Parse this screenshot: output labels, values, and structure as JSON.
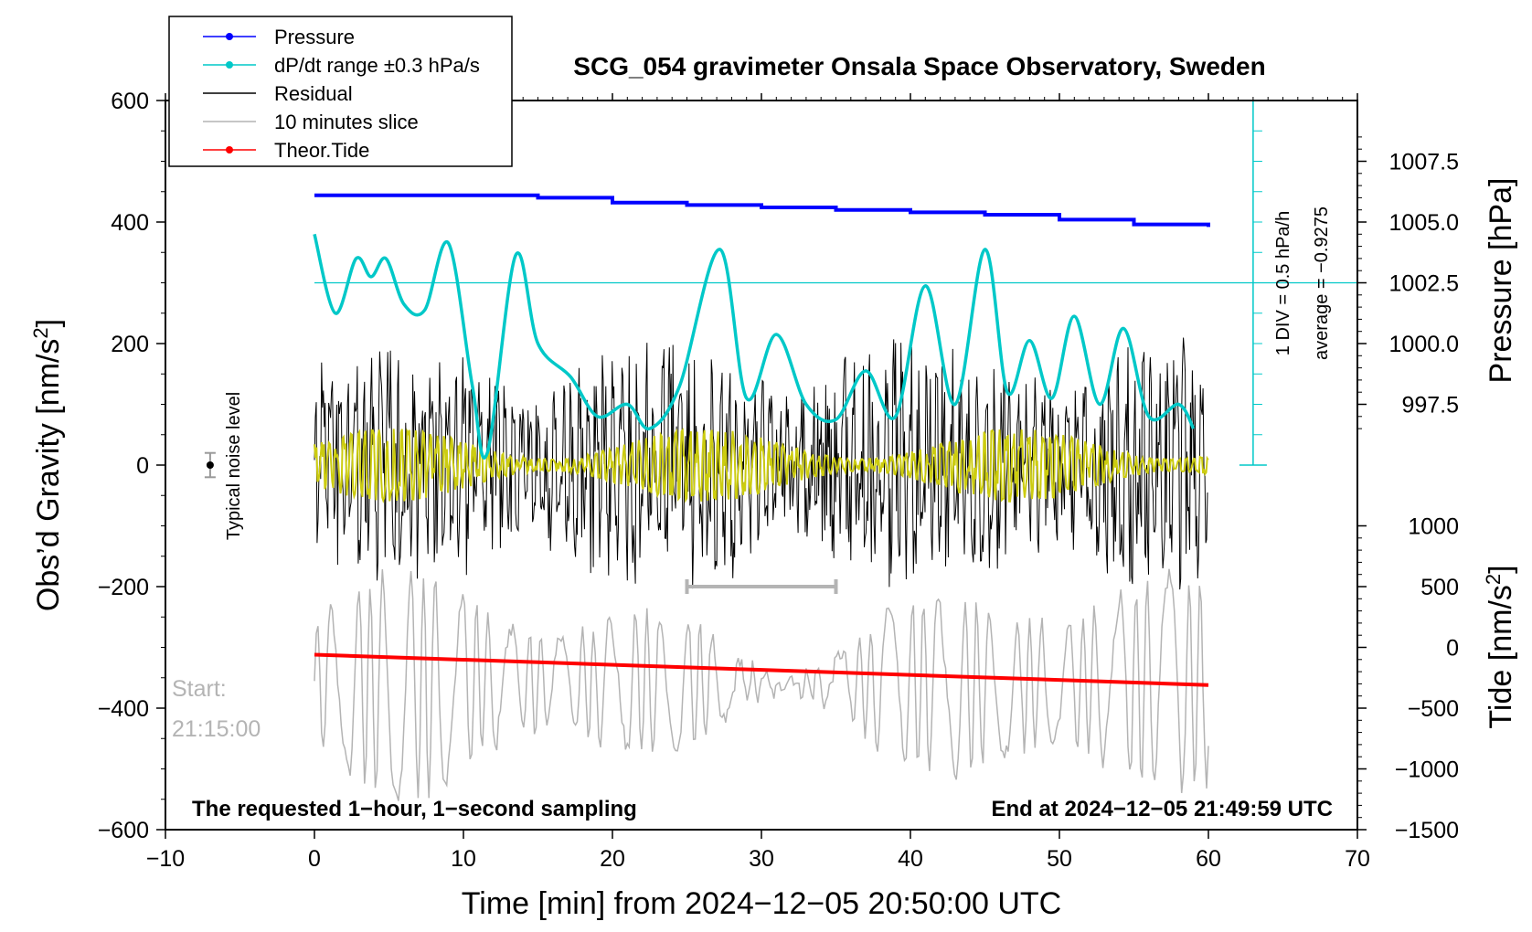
{
  "chart_data": {
    "type": "line",
    "title": "SCG_054 gravimeter Onsala Space Observatory, Sweden",
    "xlabel": "Time [min] from 2024−12−05 20:50:00 UTC",
    "ylabel_left": "Obs'd Gravity [nm/s²]",
    "ylabel_right_top": "Pressure [hPa]",
    "ylabel_right_bottom": "Tide [nm/s²]",
    "xlim": [
      -10,
      70
    ],
    "ylim_left": [
      -600,
      600
    ],
    "x_ticks": [
      "−10",
      "0",
      "10",
      "20",
      "30",
      "40",
      "50",
      "60",
      "70"
    ],
    "y_ticks_left": [
      "−600",
      "−400",
      "−200",
      "0",
      "200",
      "400",
      "600"
    ],
    "pressure_ticks": [
      "997.5",
      "1000.0",
      "1002.5",
      "1005.0",
      "1007.5"
    ],
    "tide_ticks": [
      "−1500",
      "−1000",
      "−500",
      "0",
      "500",
      "1000"
    ],
    "grid": false,
    "legend_position": "top-left",
    "legend": [
      {
        "name": "Pressure",
        "color": "#0000ff",
        "marker": true
      },
      {
        "name": "dP/dt range ±0.3 hPa/s",
        "color": "#00c8c8",
        "marker": true
      },
      {
        "name": "Residual",
        "color": "#000000",
        "marker": false
      },
      {
        "name": "10 minutes slice",
        "color": "#b4b4b4",
        "marker": false
      },
      {
        "name": "Theor.Tide",
        "color": "#ff0000",
        "marker": true
      }
    ],
    "series": [
      {
        "name": "Pressure",
        "color": "#0000ff",
        "units": "hPa",
        "x": [
          0,
          5,
          10,
          15,
          20,
          25,
          30,
          35,
          40,
          45,
          50,
          55,
          60
        ],
        "values": [
          1006.1,
          1006.1,
          1006.1,
          1006.0,
          1005.8,
          1005.7,
          1005.6,
          1005.5,
          1005.4,
          1005.3,
          1005.1,
          1004.9,
          1004.8
        ]
      },
      {
        "name": "dP/dt",
        "color": "#00c8c8",
        "units": "nm/s² scale",
        "x": [
          0,
          1.4,
          2.8,
          3.8,
          4.8,
          6,
          7.4,
          9,
          10.6,
          11.6,
          13.5,
          15,
          17.2,
          19,
          21,
          22.5,
          24.5,
          27.2,
          29,
          31,
          33,
          35,
          37,
          39,
          41,
          43,
          45,
          46.5,
          48,
          49.5,
          51,
          52.7,
          54.3,
          56,
          58,
          59
        ],
        "values": [
          380,
          250,
          340,
          310,
          340,
          265,
          255,
          365,
          130,
          20,
          345,
          200,
          145,
          80,
          100,
          60,
          130,
          355,
          110,
          215,
          100,
          75,
          155,
          80,
          295,
          100,
          355,
          120,
          205,
          110,
          245,
          100,
          225,
          80,
          100,
          60
        ]
      },
      {
        "name": "Residual",
        "color": "#000000",
        "units": "nm/s²",
        "x_range": [
          0,
          60
        ],
        "amplitude_approx": 200
      },
      {
        "name": "10 minutes slice",
        "color": "#b4b4b4",
        "units": "nm/s² (tide scale)",
        "x_range": [
          0,
          60
        ],
        "amplitude_approx": 1200
      },
      {
        "name": "Theor.Tide",
        "color": "#ff0000",
        "units": "nm/s²",
        "x": [
          0,
          60
        ],
        "values": [
          -312,
          -362
        ]
      }
    ],
    "noise_level": {
      "label": "Typical noise level",
      "x": -7,
      "y": 0,
      "error": 20
    },
    "slice_marker": {
      "x": [
        25,
        35
      ],
      "y": -200
    },
    "annotations": {
      "bottom_left": "The requested 1−hour, 1−second sampling",
      "bottom_right": "End at 2024−12−05 21:49:59 UTC",
      "start_label": "Start:",
      "start_time": "21:15:00",
      "scale_line1": "1 DIV = 0.5 hPa/h",
      "scale_line2": "average = −0.9275"
    }
  }
}
